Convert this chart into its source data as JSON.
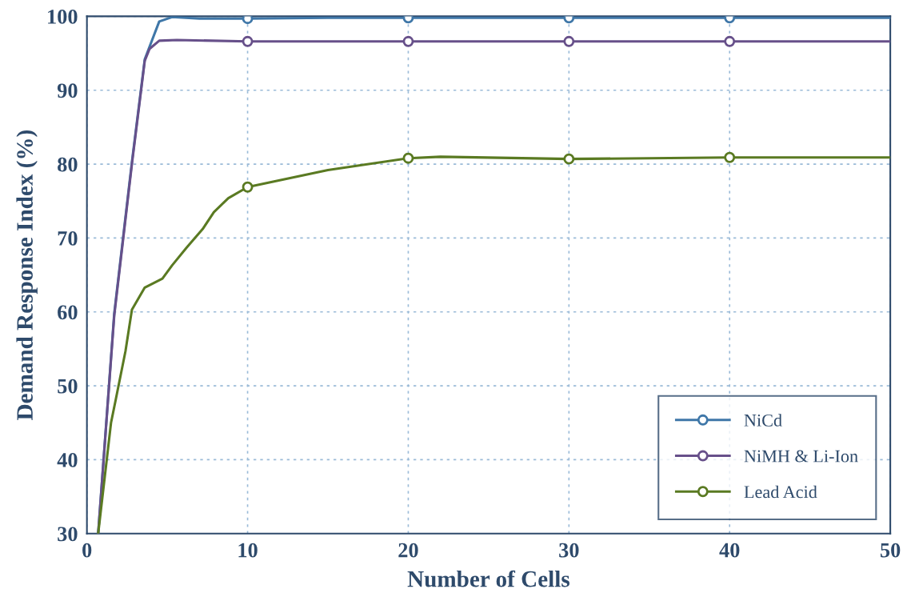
{
  "chart_data": {
    "type": "line",
    "xlabel": "Number of Cells",
    "ylabel": "Demand Response Index (%)",
    "xlim": [
      0,
      50
    ],
    "ylim": [
      30,
      100
    ],
    "xticks": [
      0,
      10,
      20,
      30,
      40,
      50
    ],
    "yticks": [
      30,
      40,
      50,
      60,
      70,
      80,
      90,
      100
    ],
    "grid": true,
    "legend": "bottom right",
    "line_style": "solid",
    "series": [
      {
        "name": "NiCd",
        "color": "#3f77a8",
        "marker": "none",
        "x": [
          0.7,
          1.7,
          2.8,
          3.6,
          4.5,
          5.3,
          7,
          10,
          15,
          20,
          30,
          40,
          50
        ],
        "values": [
          30,
          59.8,
          80.3,
          94.2,
          99.3,
          99.9,
          99.7,
          99.7,
          99.8,
          99.8,
          99.8,
          99.8,
          99.8
        ]
      },
      {
        "type": "scatter",
        "color": "#3f77a8",
        "marker": "circle",
        "x": [
          10,
          20,
          30,
          40
        ],
        "values": [
          99.7,
          99.8,
          99.8,
          99.8
        ]
      },
      {
        "name": "NiMH & Li-Ion",
        "color": "#67508a",
        "marker": "none",
        "x": [
          0.7,
          1.7,
          2.8,
          3.6,
          3.9,
          4.5,
          5.6,
          10,
          20,
          30,
          40,
          50
        ],
        "values": [
          30,
          59.5,
          80,
          94,
          95.6,
          96.7,
          96.8,
          96.6,
          96.6,
          96.6,
          96.6,
          96.6
        ]
      },
      {
        "type": "scatter",
        "color": "#67508a",
        "marker": "circle",
        "x": [
          10,
          20,
          30,
          40
        ],
        "values": [
          96.6,
          96.6,
          96.6,
          96.6
        ]
      },
      {
        "name": "Lead Acid",
        "color": "#5a7a22",
        "marker": "none",
        "x": [
          0.7,
          1.5,
          1.8,
          2.4,
          2.8,
          3.6,
          4.7,
          5.3,
          6.2,
          7.2,
          7.9,
          8.8,
          10,
          15,
          20,
          22,
          30,
          40,
          50
        ],
        "values": [
          30,
          45,
          48.2,
          54.7,
          60.3,
          63.3,
          64.5,
          66.3,
          68.7,
          71.2,
          73.5,
          75.4,
          76.9,
          79.2,
          80.8,
          81,
          80.7,
          80.9,
          80.9
        ]
      },
      {
        "type": "scatter",
        "color": "#5a7a22",
        "marker": "circle",
        "x": [
          10,
          20,
          30,
          40
        ],
        "values": [
          76.9,
          80.8,
          80.7,
          80.9
        ]
      }
    ]
  }
}
